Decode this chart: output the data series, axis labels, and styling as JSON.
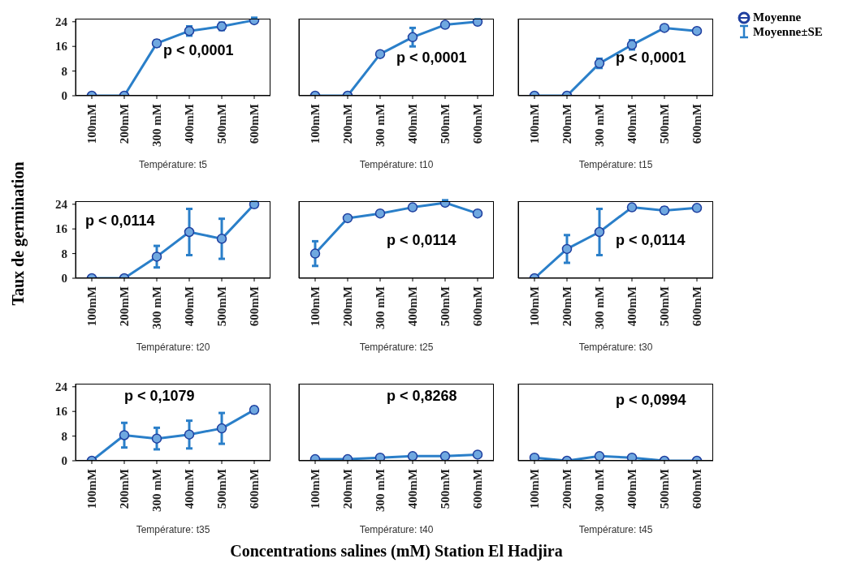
{
  "chart_data": [
    {
      "type": "line",
      "title": "Température: t5",
      "categories": [
        "100mM",
        "200mM",
        "300 mM",
        "400mM",
        "500mM",
        "600mM"
      ],
      "series": [
        {
          "color": "#2a7fc9",
          "values": [
            0,
            0,
            17,
            21,
            22.5,
            24.5
          ],
          "errors": [
            null,
            null,
            1,
            1.5,
            1.2,
            0.8
          ]
        }
      ],
      "ylim": [
        0,
        25
      ],
      "yticks": [
        0,
        8,
        16,
        24
      ],
      "marker": "circle",
      "annotations": [
        "p < 0,0001"
      ]
    },
    {
      "type": "line",
      "title": "Température: t10",
      "categories": [
        "100mM",
        "200mM",
        "300 mM",
        "400mM",
        "500mM",
        "600mM"
      ],
      "series": [
        {
          "color": "#2a7fc9",
          "values": [
            0,
            0,
            13.5,
            19,
            23,
            24
          ],
          "errors": [
            null,
            null,
            0.8,
            3,
            0.8,
            0.8
          ]
        }
      ],
      "ylim": [
        0,
        25
      ],
      "yticks": [
        0,
        8,
        16,
        24
      ],
      "marker": "circle",
      "tick_labels": "x",
      "annotations": [
        "p < 0,0001"
      ]
    },
    {
      "type": "line",
      "title": "Température: t15",
      "categories": [
        "100mM",
        "200mM",
        "300 mM",
        "400mM",
        "500mM",
        "600mM"
      ],
      "series": [
        {
          "name": "Moyenne",
          "color": "#2a7fc9",
          "values": [
            0,
            0,
            10.5,
            16.5,
            22,
            21
          ],
          "errors": [
            null,
            null,
            1.5,
            1.5,
            0.8,
            0.8
          ]
        }
      ],
      "ylim": [
        0,
        25
      ],
      "yticks": [
        0,
        8,
        16,
        24
      ],
      "marker": "circle",
      "tick_labels": "x",
      "legend": "right",
      "annotations": [
        "p < 0,0001",
        "Moyenne±SE"
      ]
    },
    {
      "type": "line",
      "title": "Température: t20",
      "ylabel": "Taux de germination",
      "categories": [
        "100mM",
        "200mM",
        "300 mM",
        "400mM",
        "500mM",
        "600mM"
      ],
      "series": [
        {
          "color": "#2a7fc9",
          "values": [
            0,
            0,
            7,
            15,
            12.8,
            24
          ],
          "errors": [
            null,
            null,
            3.5,
            7.5,
            6.5,
            0.8
          ]
        }
      ],
      "ylim": [
        0,
        25
      ],
      "yticks": [
        0,
        8,
        16,
        24
      ],
      "marker": "circle",
      "annotations": [
        "p < 0,0114"
      ]
    },
    {
      "type": "line",
      "title": "Température: t25",
      "categories": [
        "100mM",
        "200mM",
        "300 mM",
        "400mM",
        "500mM",
        "600mM"
      ],
      "series": [
        {
          "color": "#2a7fc9",
          "values": [
            8,
            19.5,
            21,
            23,
            24.5,
            21
          ],
          "errors": [
            4,
            0.8,
            0.8,
            0.8,
            0.8,
            0.8
          ]
        }
      ],
      "ylim": [
        0,
        25
      ],
      "yticks": [
        0,
        8,
        16,
        24
      ],
      "marker": "circle",
      "tick_labels": "x",
      "annotations": [
        "p < 0,0114"
      ]
    },
    {
      "type": "line",
      "title": "Température: t30",
      "categories": [
        "100mM",
        "200mM",
        "300 mM",
        "400mM",
        "500mM",
        "600mM"
      ],
      "series": [
        {
          "color": "#2a7fc9",
          "values": [
            0,
            9.5,
            15,
            23,
            22,
            22.8
          ],
          "errors": [
            null,
            4.5,
            7.5,
            0.8,
            1,
            0.8
          ]
        }
      ],
      "ylim": [
        0,
        25
      ],
      "yticks": [
        0,
        8,
        16,
        24
      ],
      "marker": "circle",
      "tick_labels": "x",
      "annotations": [
        "p < 0,0114"
      ]
    },
    {
      "type": "line",
      "title": "Température: t35",
      "categories": [
        "100mM",
        "200mM",
        "300 mM",
        "400mM",
        "500mM",
        "600mM"
      ],
      "series": [
        {
          "color": "#2a7fc9",
          "values": [
            0,
            8.3,
            7.2,
            8.5,
            10.5,
            16.5
          ],
          "errors": [
            null,
            4,
            3.5,
            4.5,
            5,
            1
          ]
        }
      ],
      "ylim": [
        0,
        25
      ],
      "yticks": [
        0,
        8,
        16,
        24
      ],
      "marker": "circle",
      "annotations": [
        "p < 0,1079"
      ]
    },
    {
      "type": "line",
      "title": "Température: t40",
      "xlabel": "Concentrations salines (mM) Station El Hadjira",
      "categories": [
        "100mM",
        "200mM",
        "300 mM",
        "400mM",
        "500mM",
        "600mM"
      ],
      "series": [
        {
          "color": "#2a7fc9",
          "values": [
            0.5,
            0.5,
            1,
            1.5,
            1.5,
            2
          ]
        }
      ],
      "ylim": [
        0,
        25
      ],
      "yticks": [
        0,
        8,
        16,
        24
      ],
      "marker": "circle",
      "tick_labels": "x",
      "annotations": [
        "p < 0,8268"
      ]
    },
    {
      "type": "line",
      "title": "Température: t45",
      "categories": [
        "100mM",
        "200mM",
        "300 mM",
        "400mM",
        "500mM",
        "600mM"
      ],
      "series": [
        {
          "color": "#2a7fc9",
          "values": [
            1,
            0,
            1.5,
            1,
            0,
            0
          ]
        }
      ],
      "ylim": [
        0,
        25
      ],
      "yticks": [
        0,
        8,
        16,
        24
      ],
      "marker": "circle",
      "tick_labels": "x",
      "annotations": [
        "p < 0,0994"
      ]
    }
  ]
}
